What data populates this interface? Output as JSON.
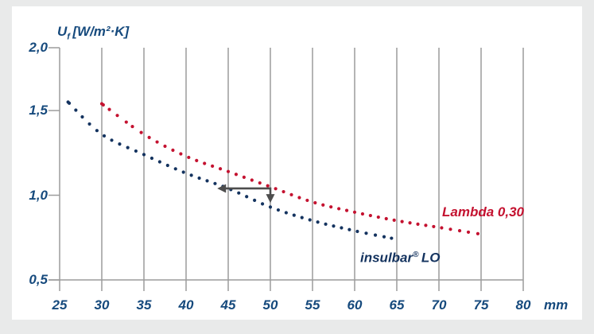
{
  "page": {
    "background_color": "#e9eaea",
    "card_color": "#ffffff",
    "grid_color": "#9c9c9c",
    "text_color": "#164a7d",
    "arrow_color": "#4d4d4d"
  },
  "chart_data": {
    "type": "line",
    "style": "dotted-curves",
    "title": {
      "symbol": "U",
      "subscript": "f",
      "units": "[W/m²·K]"
    },
    "x_axis": {
      "unit_label": "mm",
      "ticks": [
        25,
        30,
        35,
        40,
        45,
        50,
        55,
        60,
        65,
        70,
        75,
        80
      ],
      "range": [
        25,
        80
      ],
      "grid": true
    },
    "y_axis": {
      "tick_labels": [
        "2,0",
        "1,5",
        "1,0",
        "0,5"
      ],
      "tick_values": [
        2.0,
        1.5,
        1.0,
        0.5
      ],
      "range_shown": [
        0.5,
        2.0
      ],
      "grid": false
    },
    "series": [
      {
        "name": "Lambda 0,30",
        "color": "#c41230",
        "line_style": "dotted",
        "x": [
          30,
          35,
          40,
          45,
          50,
          55,
          60,
          65,
          70,
          75
        ],
        "values": [
          1.54,
          1.36,
          1.23,
          1.14,
          1.05,
          0.96,
          0.9,
          0.85,
          0.81,
          0.77
        ]
      },
      {
        "name": "insulbar® LO",
        "label_parts": {
          "name": "insulbar",
          "reg": "®",
          "suffix": "LO"
        },
        "color": "#14335f",
        "line_style": "dotted",
        "x": [
          26,
          30,
          35,
          40,
          45,
          50,
          55,
          60,
          65
        ],
        "values": [
          1.55,
          1.36,
          1.24,
          1.13,
          1.04,
          0.93,
          0.85,
          0.79,
          0.74
        ]
      }
    ],
    "annotation": {
      "shape": "left-and-down-arrow",
      "color": "#4d4d4d",
      "corner_mm": 50,
      "corner_uf": 1.04,
      "left_tip_mm": 43.7,
      "down_tip_uf": 0.955
    }
  }
}
